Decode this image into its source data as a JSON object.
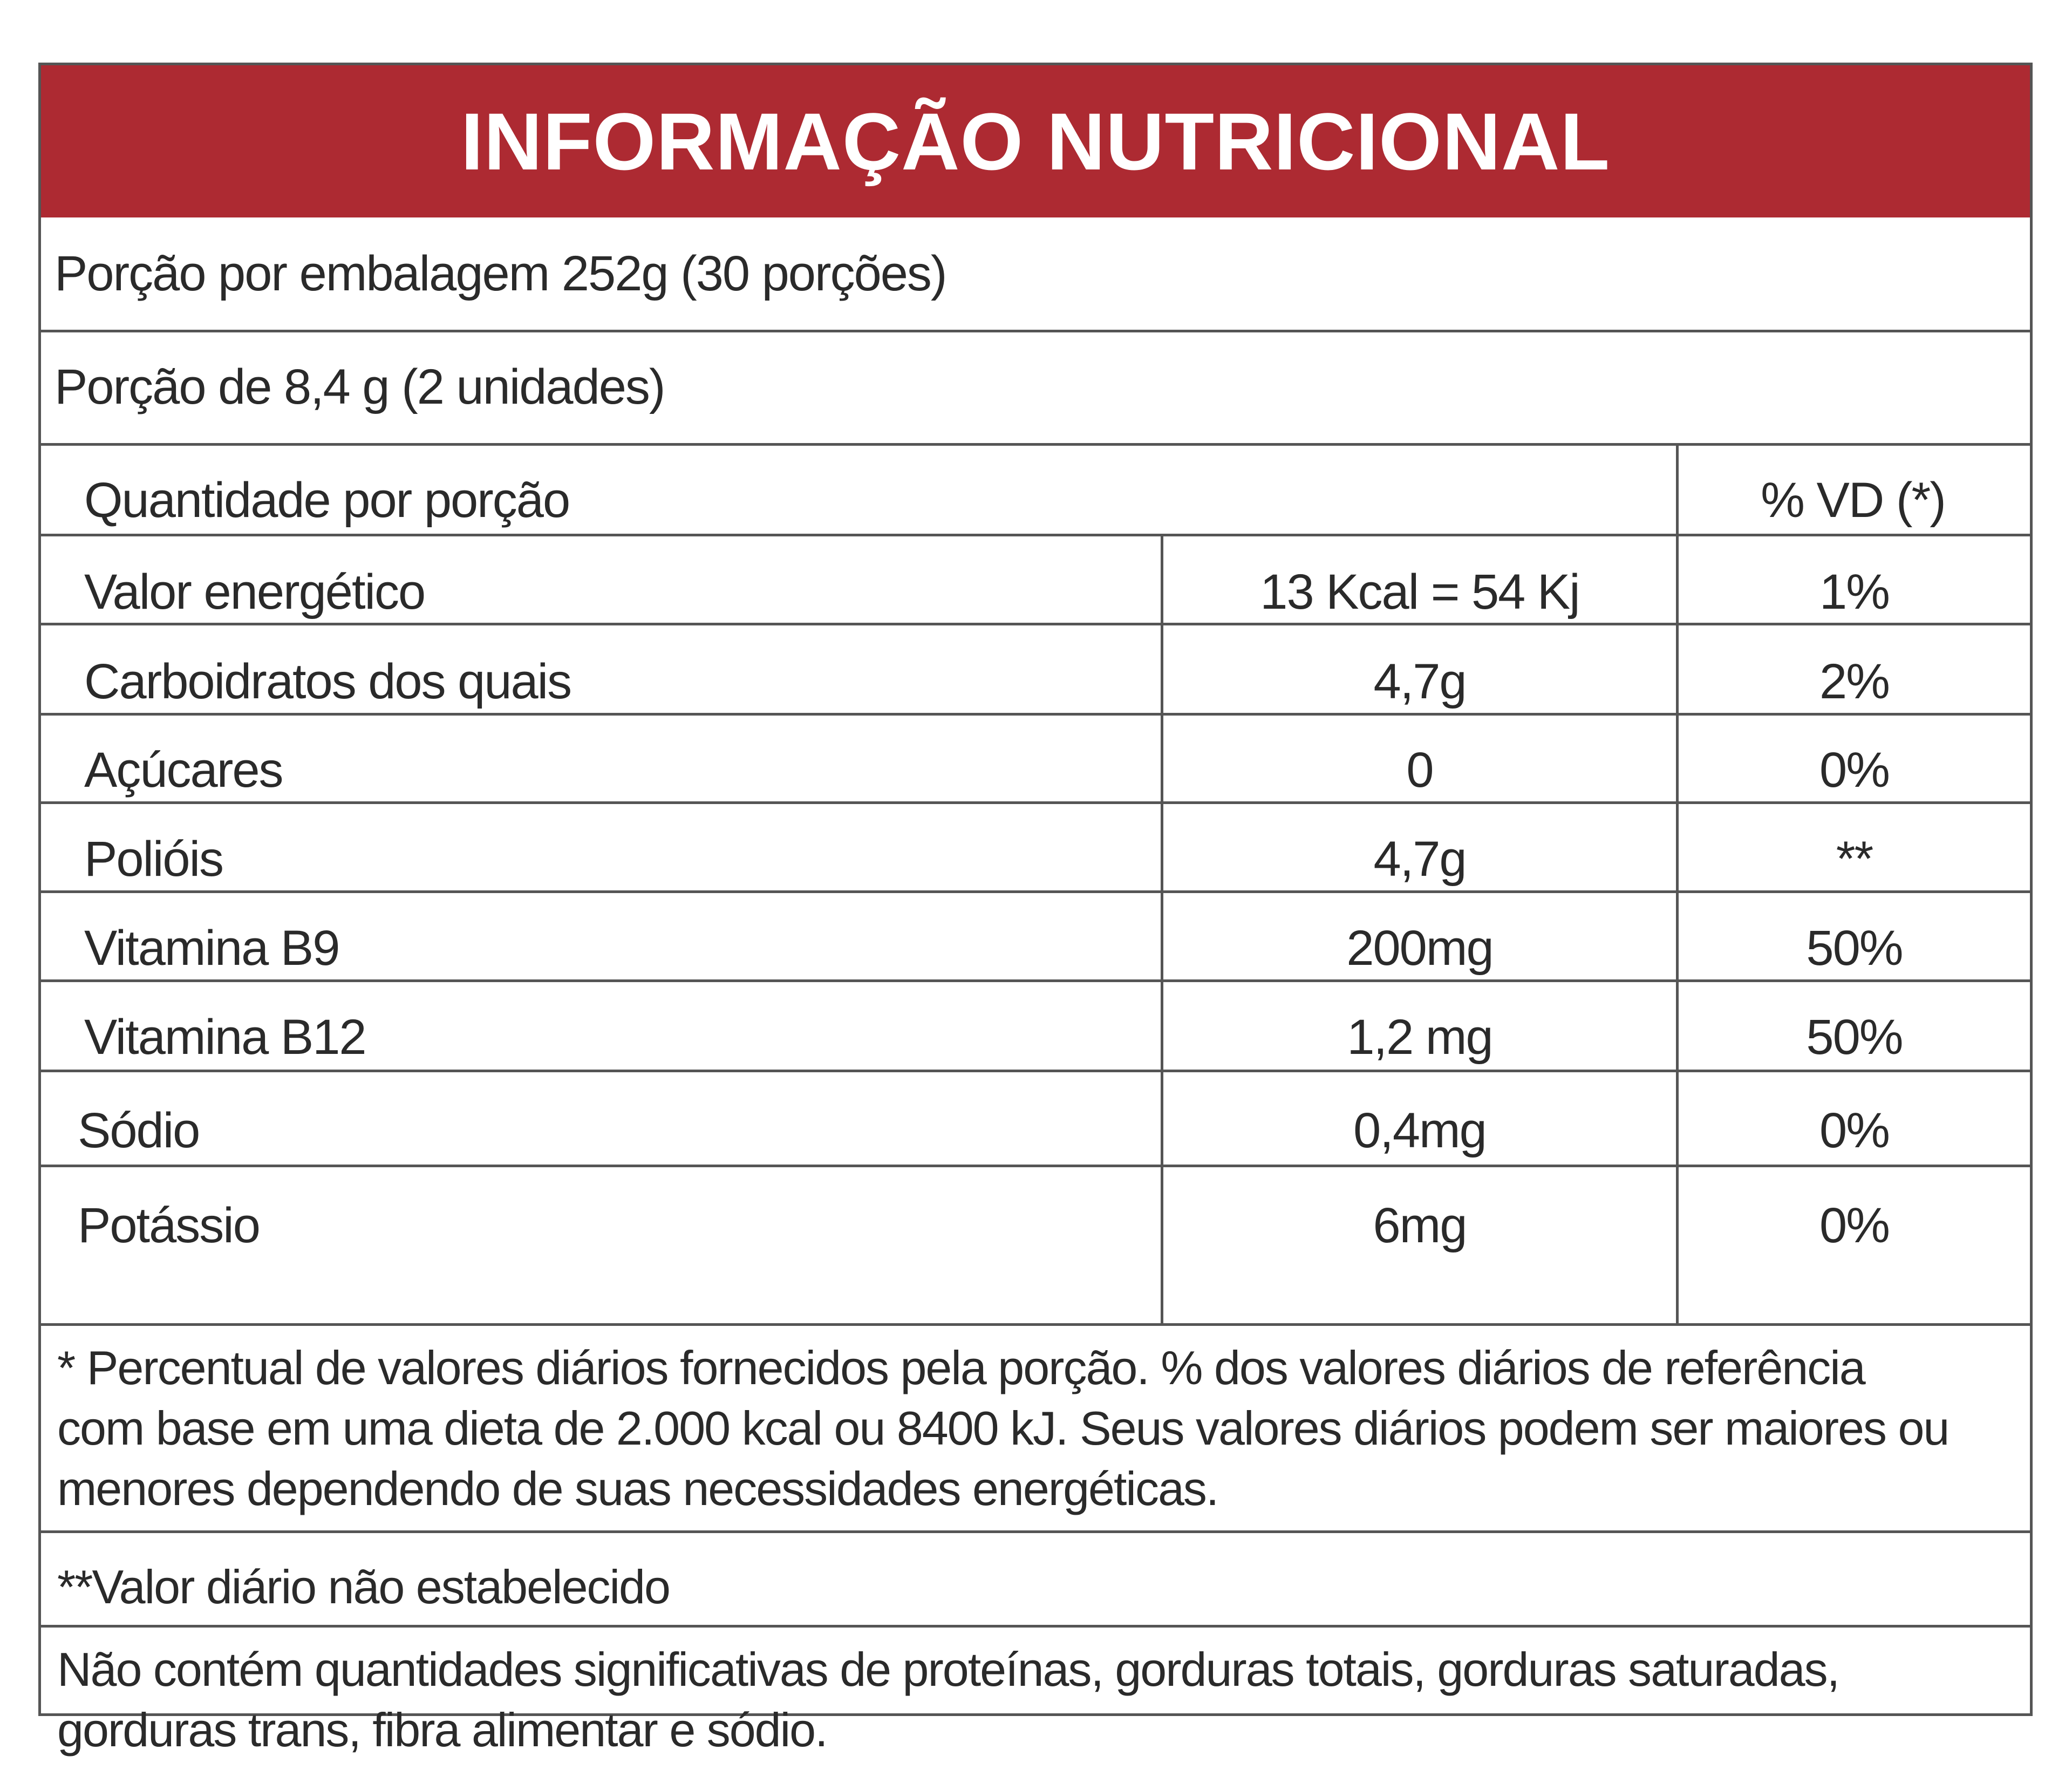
{
  "title": "INFORMAÇÃO NUTRICIONAL",
  "portions_per_package": "Porção por embalagem 252g (30 porções)",
  "portion_size": "Porção de 8,4 g (2 unidades)",
  "table": {
    "header_left": "Quantidade por porção",
    "header_right": "% VD (*)",
    "rows": [
      {
        "name": "Valor energético",
        "amount": "13 Kcal = 54 Kj",
        "dv": "1%"
      },
      {
        "name": "Carboidratos dos quais",
        "amount": "4,7g",
        "dv": "2%"
      },
      {
        "name": "Açúcares",
        "amount": "0",
        "dv": "0%"
      },
      {
        "name": "Polióis",
        "amount": "4,7g",
        "dv": "**"
      },
      {
        "name": "Vitamina B9",
        "amount": "200mg",
        "dv": "50%"
      },
      {
        "name": "Vitamina B12",
        "amount": "1,2 mg",
        "dv": "50%"
      },
      {
        "name": "Sódio",
        "amount": "0,4mg",
        "dv": "0%"
      },
      {
        "name": "Potássio",
        "amount": "6mg",
        "dv": "0%"
      }
    ]
  },
  "footnote_1": [
    "* Percentual de valores diários fornecidos pela porção. % dos valores diários de referência",
    "com base em uma dieta de 2.000 kcal ou 8400 kJ. Seus valores diários podem ser maiores ou",
    "menores dependendo de suas necessidades energéticas."
  ],
  "footnote_2": "**Valor diário não estabelecido",
  "footnote_3": [
    "Não contém quantidades significativas de proteínas, gorduras totais, gorduras saturadas,",
    "gorduras trans, fibra alimentar e sódio."
  ],
  "colors": {
    "header_background": "#ad2a32",
    "header_text": "#ffffff",
    "border": "#555555",
    "text": "#2a2a2a"
  }
}
